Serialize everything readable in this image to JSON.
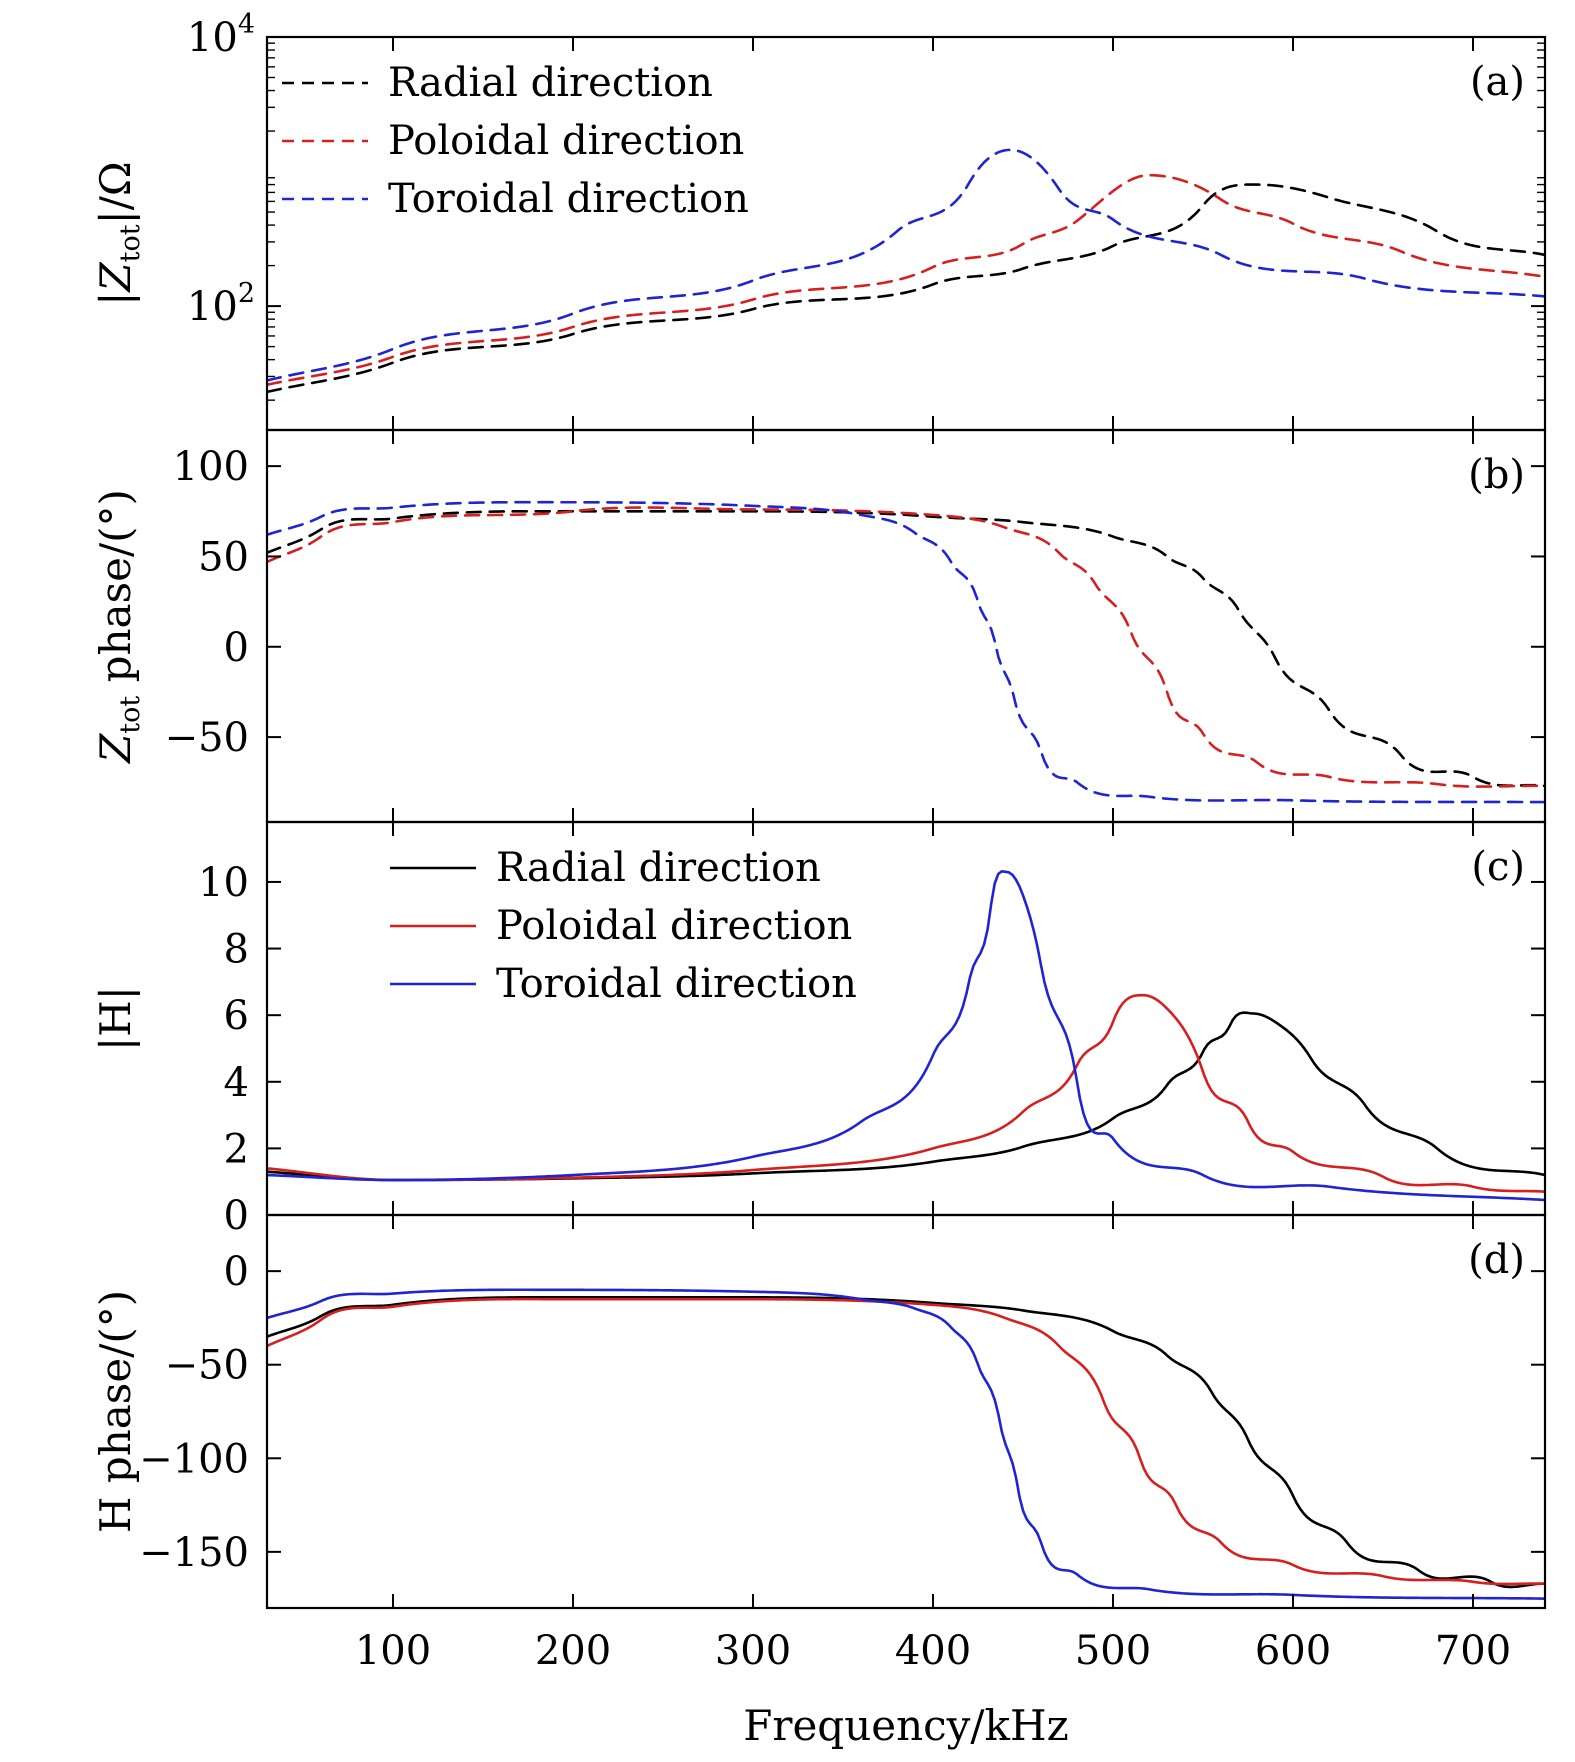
{
  "figure": {
    "xlabel": "Frequency/kHz",
    "xlim": [
      30,
      740
    ],
    "xticks": [
      100,
      200,
      300,
      400,
      500,
      600,
      700
    ],
    "colors": {
      "radial": "#000000",
      "poloidal": "#d62020",
      "toroidal": "#1f25d0"
    }
  },
  "chart_data": [
    {
      "type": "line",
      "panel_label": "(a)",
      "ylabel": "|Ztot|/Ω",
      "yscale": "log",
      "ylim": [
        12,
        10000
      ],
      "yticks": [
        {
          "value": 100,
          "label": "10^2"
        },
        {
          "value": 10000,
          "label": "10^4"
        }
      ],
      "line_style": "dashed",
      "legend": {
        "placement": "top-left",
        "entries": [
          "Radial direction",
          "Poloidal direction",
          "Toroidal direction"
        ]
      },
      "series": [
        {
          "name": "Radial direction",
          "color": "#000000",
          "x": [
            30,
            100,
            200,
            300,
            400,
            450,
            500,
            550,
            580,
            620,
            680,
            740
          ],
          "y": [
            23,
            38,
            62,
            95,
            145,
            190,
            280,
            560,
            800,
            640,
            360,
            240
          ]
        },
        {
          "name": "Poloidal direction",
          "color": "#d62020",
          "x": [
            30,
            100,
            200,
            300,
            400,
            450,
            480,
            520,
            560,
            600,
            660,
            740
          ],
          "y": [
            26,
            42,
            70,
            112,
            195,
            290,
            430,
            940,
            620,
            410,
            255,
            165
          ]
        },
        {
          "name": "Toroidal direction",
          "color": "#1f25d0",
          "x": [
            30,
            100,
            200,
            300,
            380,
            420,
            443,
            470,
            500,
            560,
            640,
            740
          ],
          "y": [
            28,
            48,
            88,
            155,
            360,
            820,
            1450,
            740,
            440,
            240,
            160,
            118
          ]
        }
      ]
    },
    {
      "type": "line",
      "panel_label": "(b)",
      "ylabel": "Ztot phase/(°)",
      "ylim": [
        -97,
        120
      ],
      "yticks": [
        -50,
        0,
        50,
        100
      ],
      "line_style": "dashed",
      "series": [
        {
          "name": "Radial direction",
          "color": "#000000",
          "x": [
            30,
            60,
            100,
            200,
            300,
            400,
            450,
            500,
            530,
            550,
            570,
            590,
            620,
            660,
            700,
            740
          ],
          "y": [
            52,
            65,
            71,
            75,
            75,
            72,
            69,
            61,
            50,
            38,
            20,
            -6,
            -35,
            -60,
            -72,
            -77
          ]
        },
        {
          "name": "Poloidal direction",
          "color": "#d62020",
          "x": [
            30,
            60,
            100,
            200,
            300,
            400,
            440,
            470,
            490,
            510,
            530,
            550,
            580,
            620,
            680,
            740
          ],
          "y": [
            47,
            61,
            69,
            75,
            76,
            73,
            66,
            52,
            35,
            8,
            -25,
            -48,
            -64,
            -72,
            -76,
            -77
          ]
        },
        {
          "name": "Toroidal direction",
          "color": "#1f25d0",
          "x": [
            30,
            60,
            100,
            200,
            300,
            360,
            390,
            410,
            425,
            435,
            445,
            460,
            480,
            520,
            600,
            740
          ],
          "y": [
            62,
            72,
            77,
            80,
            78,
            73,
            63,
            47,
            25,
            0,
            -28,
            -58,
            -75,
            -83,
            -85,
            -86
          ]
        }
      ]
    },
    {
      "type": "line",
      "panel_label": "(c)",
      "ylabel": "|H|",
      "ylim": [
        0,
        11.8
      ],
      "yticks": [
        0,
        2,
        4,
        6,
        8,
        10
      ],
      "line_style": "solid",
      "legend": {
        "placement": "top-center",
        "entries": [
          "Radial direction",
          "Poloidal direction",
          "Toroidal direction"
        ]
      },
      "series": [
        {
          "name": "Radial direction",
          "color": "#000000",
          "x": [
            30,
            100,
            200,
            300,
            400,
            450,
            500,
            530,
            550,
            565,
            578,
            590,
            610,
            640,
            680,
            740
          ],
          "y": [
            1.3,
            1.05,
            1.1,
            1.25,
            1.6,
            2.05,
            2.9,
            3.9,
            4.9,
            5.7,
            6.05,
            5.8,
            4.7,
            3.3,
            2.0,
            1.2
          ]
        },
        {
          "name": "Poloidal direction",
          "color": "#d62020",
          "x": [
            30,
            100,
            200,
            300,
            400,
            450,
            480,
            500,
            517,
            530,
            550,
            575,
            600,
            650,
            700,
            740
          ],
          "y": [
            1.4,
            1.05,
            1.12,
            1.35,
            2.0,
            3.1,
            4.5,
            5.8,
            6.6,
            6.2,
            4.3,
            2.8,
            1.9,
            1.15,
            0.85,
            0.7
          ]
        },
        {
          "name": "Toroidal direction",
          "color": "#1f25d0",
          "x": [
            30,
            100,
            200,
            300,
            360,
            400,
            420,
            432,
            441,
            450,
            460,
            480,
            500,
            550,
            620,
            740
          ],
          "y": [
            1.2,
            1.05,
            1.2,
            1.75,
            2.8,
            4.8,
            7.0,
            9.2,
            10.3,
            9.6,
            7.5,
            4.0,
            2.3,
            1.2,
            0.85,
            0.45
          ]
        }
      ]
    },
    {
      "type": "line",
      "panel_label": "(d)",
      "ylabel": "H phase/(°)",
      "ylim": [
        -180,
        30
      ],
      "yticks": [
        -150,
        -100,
        -50,
        0
      ],
      "line_style": "solid",
      "series": [
        {
          "name": "Radial direction",
          "color": "#000000",
          "x": [
            30,
            60,
            100,
            200,
            300,
            400,
            450,
            500,
            530,
            555,
            575,
            600,
            630,
            670,
            710,
            740
          ],
          "y": [
            -35,
            -24,
            -18,
            -14,
            -14,
            -17,
            -21,
            -32,
            -45,
            -65,
            -90,
            -120,
            -145,
            -160,
            -166,
            -167
          ]
        },
        {
          "name": "Poloidal direction",
          "color": "#d62020",
          "x": [
            30,
            60,
            100,
            200,
            300,
            400,
            440,
            470,
            495,
            515,
            535,
            560,
            600,
            650,
            700,
            740
          ],
          "y": [
            -40,
            -26,
            -19,
            -15,
            -15,
            -18,
            -25,
            -40,
            -70,
            -100,
            -125,
            -145,
            -157,
            -163,
            -166,
            -167
          ]
        },
        {
          "name": "Toroidal direction",
          "color": "#1f25d0",
          "x": [
            30,
            60,
            100,
            200,
            300,
            360,
            390,
            410,
            425,
            437,
            447,
            460,
            480,
            520,
            600,
            740
          ],
          "y": [
            -25,
            -16,
            -12,
            -10,
            -11,
            -15,
            -20,
            -30,
            -50,
            -80,
            -115,
            -145,
            -162,
            -170,
            -173,
            -175
          ]
        }
      ]
    }
  ]
}
